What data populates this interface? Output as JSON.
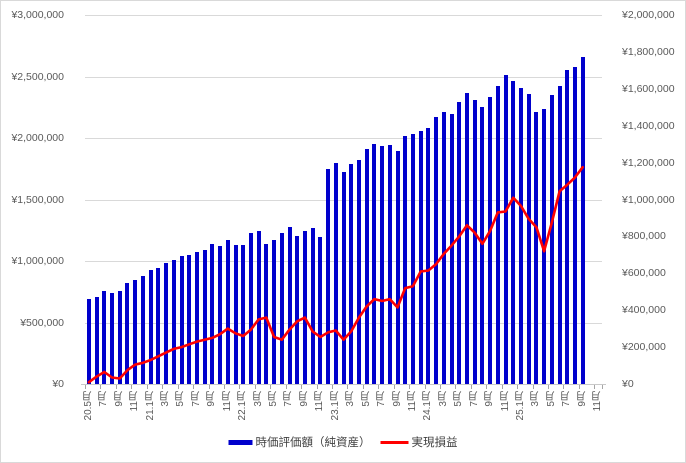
{
  "chart_data": {
    "type": "bar+line combo",
    "title": "",
    "grid": "horizontal, major units of left axis",
    "legend_position": "bottom-center",
    "months": [
      "2020-05",
      "2020-06",
      "2020-07",
      "2020-08",
      "2020-09",
      "2020-10",
      "2020-11",
      "2020-12",
      "2021-01",
      "2021-02",
      "2021-03",
      "2021-04",
      "2021-05",
      "2021-06",
      "2021-07",
      "2021-08",
      "2021-09",
      "2021-10",
      "2021-11",
      "2021-12",
      "2022-01",
      "2022-02",
      "2022-03",
      "2022-04",
      "2022-05",
      "2022-06",
      "2022-07",
      "2022-08",
      "2022-09",
      "2022-10",
      "2022-11",
      "2022-12",
      "2023-01",
      "2023-02",
      "2023-03",
      "2023-04",
      "2023-05",
      "2023-06",
      "2023-07",
      "2023-08",
      "2023-09",
      "2023-10",
      "2023-11",
      "2023-12",
      "2024-01",
      "2024-02",
      "2024-03",
      "2024-04",
      "2024-05",
      "2024-06",
      "2024-07",
      "2024-08",
      "2024-09",
      "2024-10",
      "2024-11",
      "2024-12",
      "2025-01",
      "2025-02",
      "2025-03",
      "2025-04",
      "2025-05",
      "2025-06",
      "2025-07",
      "2025-08",
      "2025-09"
    ],
    "x_tick_labels": [
      "20.5月",
      "7月",
      "9月",
      "11月",
      "21.1月",
      "3月",
      "5月",
      "7月",
      "9月",
      "11月",
      "22.1月",
      "3月",
      "5月",
      "7月",
      "9月",
      "11月",
      "23.1月",
      "3月",
      "5月",
      "7月",
      "9月",
      "11月",
      "24.1月",
      "3月",
      "5月",
      "7月",
      "9月",
      "11月",
      "25.1月",
      "3月",
      "5月",
      "7月",
      "9月",
      "11月"
    ],
    "x_tick_interval_months": 2,
    "x_total_slots": 67,
    "series": [
      {
        "name": "時価評価額（純資産）",
        "type": "bar",
        "axis": "left",
        "color": "#0000cc",
        "values": [
          690000,
          710000,
          760000,
          740000,
          755000,
          825000,
          845000,
          880000,
          925000,
          940000,
          985000,
          1010000,
          1040000,
          1050000,
          1070000,
          1090000,
          1140000,
          1125000,
          1170000,
          1130000,
          1130000,
          1225000,
          1245000,
          1140000,
          1175000,
          1230000,
          1275000,
          1205000,
          1245000,
          1265000,
          1195000,
          1750000,
          1795000,
          1720000,
          1790000,
          1820000,
          1910000,
          1950000,
          1935000,
          1940000,
          1895000,
          2020000,
          2030000,
          2060000,
          2080000,
          2175000,
          2210000,
          2195000,
          2290000,
          2370000,
          2310000,
          2250000,
          2330000,
          2425000,
          2510000,
          2460000,
          2405000,
          2355000,
          2210000,
          2240000,
          2350000,
          2425000,
          2555000,
          2580000,
          2660000
        ]
      },
      {
        "name": "実現損益",
        "type": "line",
        "axis": "right",
        "color": "#ff0000",
        "values": [
          10000,
          40000,
          65000,
          35000,
          30000,
          75000,
          105000,
          115000,
          130000,
          150000,
          170000,
          190000,
          200000,
          215000,
          230000,
          240000,
          250000,
          270000,
          300000,
          275000,
          260000,
          295000,
          350000,
          360000,
          255000,
          240000,
          295000,
          340000,
          360000,
          285000,
          255000,
          280000,
          290000,
          240000,
          285000,
          360000,
          420000,
          460000,
          450000,
          460000,
          415000,
          520000,
          530000,
          610000,
          615000,
          650000,
          705000,
          750000,
          800000,
          860000,
          820000,
          760000,
          830000,
          930000,
          935000,
          1010000,
          965000,
          895000,
          850000,
          720000,
          875000,
          1045000,
          1080000,
          1120000,
          1175000
        ]
      }
    ],
    "left_axis": {
      "min": 0,
      "max": 3000000,
      "step": 500000,
      "labels": [
        "¥0",
        "¥500,000",
        "¥1,000,000",
        "¥1,500,000",
        "¥2,000,000",
        "¥2,500,000",
        "¥3,000,000"
      ]
    },
    "right_axis": {
      "min": 0,
      "max": 2000000,
      "step": 200000,
      "labels": [
        "¥0",
        "¥200,000",
        "¥400,000",
        "¥600,000",
        "¥800,000",
        "¥1,000,000",
        "¥1,200,000",
        "¥1,400,000",
        "¥1,600,000",
        "¥1,800,000",
        "¥2,000,000"
      ]
    }
  },
  "colors": {
    "bar": "#0000cc",
    "line": "#ff0000",
    "grid": "#d9d9d9",
    "axis_text": "#595959"
  }
}
